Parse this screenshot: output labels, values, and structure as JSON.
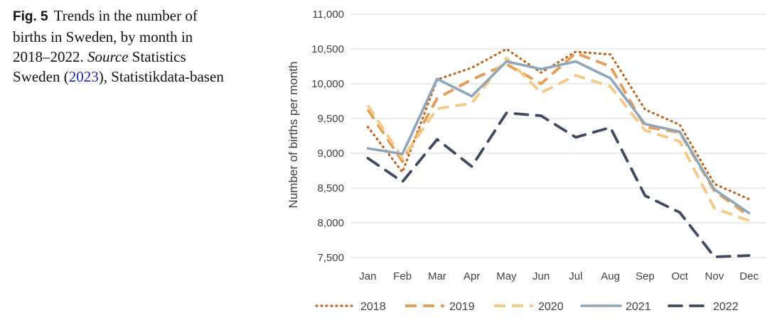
{
  "caption": {
    "fig_label": "Fig. 5",
    "text_part1": "Trends in the number of births in Sweden, by month in 2018–2022.",
    "source_word": "Source",
    "text_part2": "Statistics Sweden (",
    "year_link": "2023",
    "text_part3": "), Statistikdata-basen"
  },
  "chart_data": {
    "type": "line",
    "title": "",
    "xlabel": "",
    "ylabel": "Number of births per month",
    "ylim": [
      7500,
      11000
    ],
    "yticks": [
      7500,
      8000,
      8500,
      9000,
      9500,
      10000,
      10500,
      11000
    ],
    "ytick_labels": [
      "7,500",
      "8,000",
      "8,500",
      "9,000",
      "9,500",
      "10,000",
      "10,500",
      "11,000"
    ],
    "categories": [
      "Jan",
      "Feb",
      "Mar",
      "Apr",
      "May",
      "Jun",
      "Jul",
      "Aug",
      "Sep",
      "Oct",
      "Nov",
      "Dec"
    ],
    "grid": "horizontal",
    "legend_position": "bottom",
    "series": [
      {
        "name": "2018",
        "color": "#c0651b",
        "style": "dotted",
        "values": [
          9380,
          8730,
          10060,
          10230,
          10500,
          10160,
          10460,
          10420,
          9630,
          9410,
          8560,
          8340
        ]
      },
      {
        "name": "2019",
        "color": "#e3a05a",
        "style": "dashed",
        "values": [
          9630,
          8880,
          9790,
          10060,
          10280,
          10000,
          10440,
          10250,
          9380,
          9300,
          8460,
          8100
        ]
      },
      {
        "name": "2020",
        "color": "#f5c98a",
        "style": "dashed",
        "values": [
          9690,
          8930,
          9640,
          9720,
          10370,
          9870,
          10120,
          9960,
          9330,
          9170,
          8210,
          8030
        ]
      },
      {
        "name": "2021",
        "color": "#8ea6ba",
        "style": "solid",
        "values": [
          9070,
          8990,
          10070,
          9820,
          10320,
          10210,
          10320,
          10080,
          9420,
          9310,
          8480,
          8140
        ]
      },
      {
        "name": "2022",
        "color": "#3d4a60",
        "style": "longdash",
        "values": [
          8930,
          8590,
          9200,
          8810,
          9580,
          9540,
          9230,
          9370,
          8390,
          8150,
          7510,
          7530
        ]
      }
    ]
  }
}
